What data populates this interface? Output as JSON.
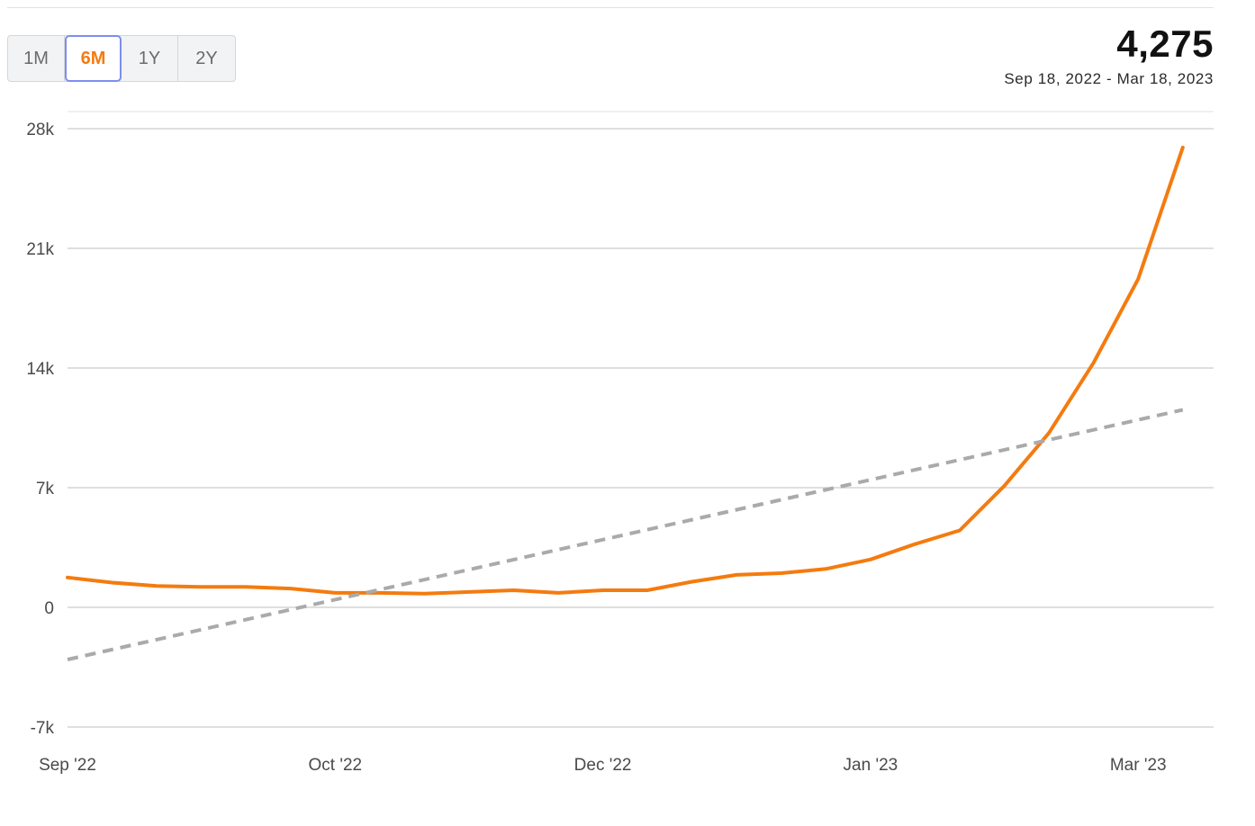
{
  "range_selector": {
    "options": [
      "1M",
      "6M",
      "1Y",
      "2Y"
    ],
    "active": "6M"
  },
  "summary": {
    "value": "4,275",
    "date_range": "Sep 18, 2022 - Mar 18, 2023"
  },
  "colors": {
    "series": "#f47b0f",
    "trend": "#aaaaaa",
    "grid": "#cccccc",
    "active_border": "#7b8ff0"
  },
  "chart_data": {
    "type": "line",
    "title": "",
    "xlabel": "",
    "ylabel": "",
    "ylim": [
      -7000,
      28000
    ],
    "yticks": [
      28000,
      21000,
      14000,
      7000,
      0,
      -7000
    ],
    "ytick_labels": [
      "28k",
      "21k",
      "14k",
      "7k",
      "0",
      "-7k"
    ],
    "xtick_labels": [
      "Sep '22",
      "Oct '22",
      "Dec '22",
      "Jan '23",
      "Mar '23"
    ],
    "xtick_positions": [
      0,
      6,
      12,
      18,
      24
    ],
    "grid": true,
    "series": [
      {
        "kind": "actual",
        "x": [
          0,
          1,
          2,
          3,
          4,
          5,
          6,
          7,
          8,
          9,
          10,
          11,
          12,
          13,
          14,
          15,
          16,
          17,
          18,
          19,
          20,
          21,
          22,
          23,
          24,
          25
        ],
        "values": [
          1750,
          1450,
          1250,
          1200,
          1200,
          1100,
          850,
          850,
          800,
          900,
          1000,
          850,
          1000,
          1000,
          1500,
          1900,
          2000,
          2250,
          2800,
          3700,
          4500,
          7100,
          10200,
          14300,
          19200,
          26900
        ]
      },
      {
        "kind": "trend",
        "dashed": true,
        "x": [
          0,
          25
        ],
        "values": [
          -3050,
          11550
        ]
      }
    ]
  }
}
